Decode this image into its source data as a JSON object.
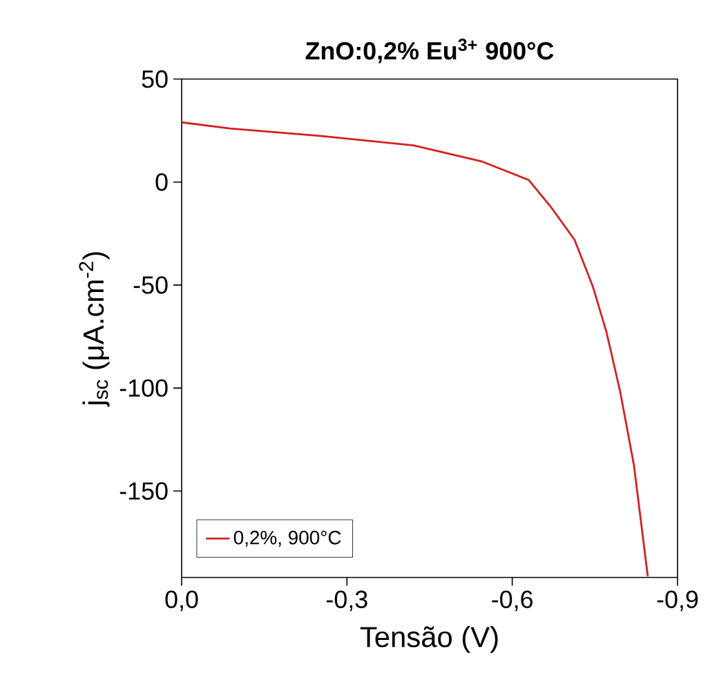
{
  "chart_data": {
    "type": "line",
    "title": "ZnO:0,2% Eu$^{3+}$ 900°C",
    "xlabel": "Tensão (V)",
    "ylabel": "j$_{sc}$ (μA.cm$^{-2}$)",
    "series": [
      {
        "name": "0,2%, 900°C",
        "color": "#d42020",
        "x": [
          0,
          -0.088,
          -0.255,
          -0.421,
          -0.546,
          -0.63,
          -0.671,
          -0.713,
          -0.746,
          -0.771,
          -0.796,
          -0.821,
          -0.846
        ],
        "values": [
          29,
          26,
          22.3,
          17.8,
          9.9,
          1,
          -12.4,
          -28,
          -50.5,
          -72.8,
          -101.9,
          -137.7,
          -191.4
        ]
      }
    ],
    "xlim": [
      0,
      -0.9
    ],
    "ylim": [
      -192,
      50
    ],
    "xticks": [
      {
        "value": 0,
        "label": "0,0"
      },
      {
        "value": -0.3,
        "label": "-0,3"
      },
      {
        "value": -0.6,
        "label": "-0,6"
      },
      {
        "value": -0.9,
        "label": "-0,9"
      }
    ],
    "yticks": [
      -150,
      -100,
      -50,
      0,
      50
    ],
    "legend": "bottom left",
    "grid": false,
    "marker": "none",
    "line_style": "solid"
  }
}
